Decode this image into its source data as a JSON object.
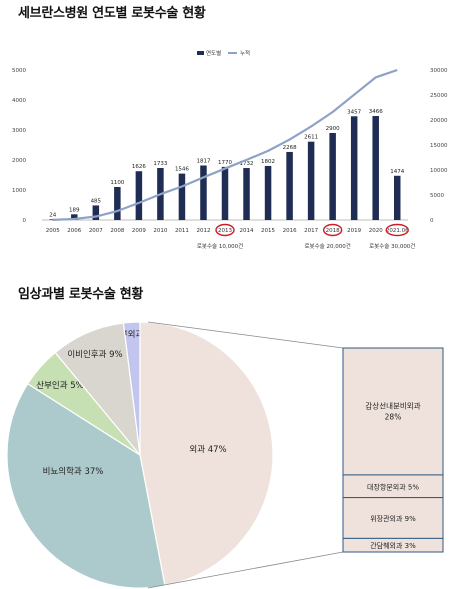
{
  "titles": {
    "chart1": "세브란스병원 연도별 로봇수술 현황",
    "chart2": "임상과별 로봇수술 현황"
  },
  "colors": {
    "bar": "#1f2d55",
    "cumulative_line": "#8da2c6",
    "highlight_circle": "#cc1f2a",
    "pie": [
      "#efe2dc",
      "#acc9cb",
      "#c6dfb3",
      "#d9d5cf",
      "#c2c5ee"
    ],
    "breakdown_box": "#efe2dc",
    "breakdown_border": "#2f5a82"
  },
  "chart_data": [
    {
      "type": "bar",
      "categories": [
        "2005",
        "2006",
        "2007",
        "2008",
        "2009",
        "2010",
        "2011",
        "2012",
        "2013",
        "2014",
        "2015",
        "2016",
        "2017",
        "2018",
        "2019",
        "2020",
        "2021.06"
      ],
      "series": [
        {
          "name": "연도별",
          "type": "bar",
          "axis": "left",
          "values": [
            24,
            189,
            485,
            1100,
            1626,
            1733,
            1546,
            1817,
            1770,
            1732,
            1802,
            2268,
            2611,
            2900,
            3457,
            3466,
            1474
          ]
        },
        {
          "name": "누적",
          "type": "line",
          "axis": "right",
          "values": [
            24,
            213,
            698,
            1798,
            3424,
            5157,
            6703,
            8520,
            10290,
            12022,
            13824,
            16092,
            18703,
            21603,
            25060,
            28526,
            30000
          ]
        }
      ],
      "ylim_left": [
        0,
        5000
      ],
      "yticks_left": [
        0,
        1000,
        2000,
        3000,
        4000,
        5000
      ],
      "ylim_right": [
        0,
        30000
      ],
      "yticks_right": [
        0,
        5000,
        10000,
        15000,
        20000,
        25000,
        30000
      ],
      "legend_position": "top-center",
      "highlighted_categories": [
        "2013",
        "2018",
        "2021.06"
      ],
      "annotations": [
        "로봇수술 10,000건",
        "로봇수술 20,000건",
        "로봇수술 30,000건"
      ],
      "grid": false
    },
    {
      "type": "pie",
      "slices": [
        {
          "label": "외과",
          "value": 47,
          "display": "외과 47%"
        },
        {
          "label": "비뇨의학과",
          "value": 37,
          "display": "비뇨의학과 37%"
        },
        {
          "label": "산부인과",
          "value": 5,
          "display": "산부인과 5%"
        },
        {
          "label": "이비인후과",
          "value": 9,
          "display": "이비인후과 9%"
        },
        {
          "label": "흉부외과(폐)",
          "value": 2,
          "display": "흉부외과(폐) 2%"
        }
      ],
      "breakdown_of": "외과",
      "breakdown": [
        {
          "label": "갑상선내분비외과",
          "value": 28,
          "value_text": "28%"
        },
        {
          "label": "대장항문외과",
          "value": 5,
          "display": "대장항문외과 5%"
        },
        {
          "label": "위장관외과",
          "value": 9,
          "display": "위장관외과 9%"
        },
        {
          "label": "간담췌외과",
          "value": 3,
          "display": "간담췌외과 3%"
        }
      ]
    }
  ]
}
